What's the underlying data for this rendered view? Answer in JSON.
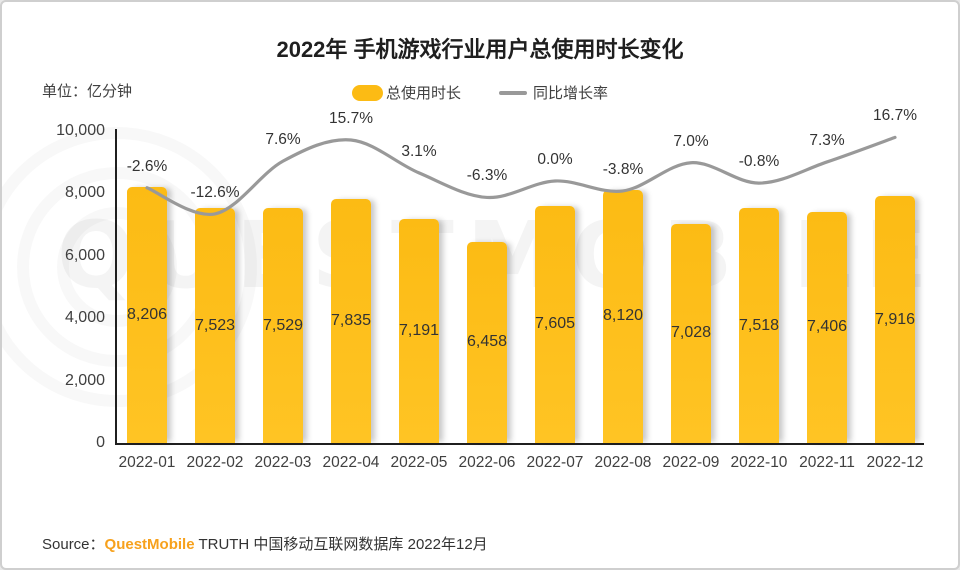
{
  "title": "2022年 手机游戏行业用户总使用时长变化",
  "unit_label": "单位：亿分钟",
  "legend": {
    "bar_label": "总使用时长",
    "line_label": "同比增长率"
  },
  "watermark": {
    "text": "QUESTMOBILE"
  },
  "colors": {
    "bar": "#FCBB14",
    "line": "#999999",
    "brand_orange": "#F7A11C"
  },
  "chart_data": {
    "type": "bar",
    "combo": "bar+line",
    "title": "2022年 手机游戏行业用户总使用时长变化",
    "categories": [
      "2022-01",
      "2022-02",
      "2022-03",
      "2022-04",
      "2022-05",
      "2022-06",
      "2022-07",
      "2022-08",
      "2022-09",
      "2022-10",
      "2022-11",
      "2022-12"
    ],
    "series": [
      {
        "name": "总使用时长",
        "type": "bar",
        "unit": "亿分钟",
        "values": [
          8206,
          7523,
          7529,
          7835,
          7191,
          6458,
          7605,
          8120,
          7028,
          7518,
          7406,
          7916
        ]
      },
      {
        "name": "同比增长率",
        "type": "line",
        "unit": "%",
        "values": [
          -2.6,
          -12.6,
          7.6,
          15.7,
          3.1,
          -6.3,
          0.0,
          -3.8,
          7.0,
          -0.8,
          7.3,
          16.7
        ]
      }
    ],
    "xlabel": "",
    "ylabel": "亿分钟",
    "ylim": [
      0,
      10000
    ],
    "yticks": [
      0,
      2000,
      4000,
      6000,
      8000,
      10000
    ],
    "ytick_labels": [
      "0",
      "2,000",
      "4,000",
      "6,000",
      "8,000",
      "10,000"
    ],
    "grid": false,
    "legend_position": "top-center",
    "value_labels_shown": true
  },
  "source": {
    "prefix": "Source：",
    "brand": "QuestMobile",
    "suffix": " TRUTH 中国移动互联网数据库 2022年12月"
  }
}
